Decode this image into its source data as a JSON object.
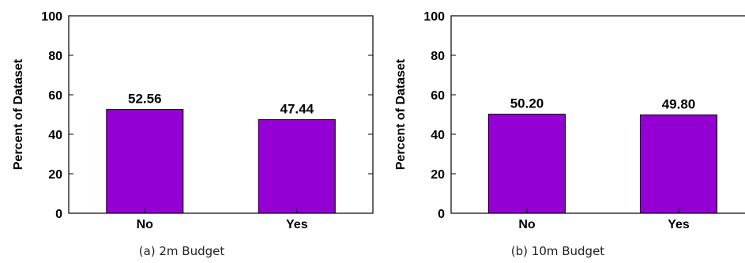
{
  "chart_data": [
    {
      "type": "bar",
      "categories": [
        "No",
        "Yes"
      ],
      "values": [
        52.56,
        47.44
      ],
      "value_labels": [
        "52.56",
        "47.44"
      ],
      "ylabel": "Percent of Dataset",
      "xlabel": "",
      "ylim": [
        0,
        100
      ],
      "yticks": [
        "0",
        "20",
        "40",
        "60",
        "80",
        "100"
      ],
      "caption": "(a)  2m Budget",
      "bar_color": "#9400d3",
      "grid": false
    },
    {
      "type": "bar",
      "categories": [
        "No",
        "Yes"
      ],
      "values": [
        50.2,
        49.8
      ],
      "value_labels": [
        "50.20",
        "49.80"
      ],
      "ylabel": "Percent of Dataset",
      "xlabel": "",
      "ylim": [
        0,
        100
      ],
      "yticks": [
        "0",
        "20",
        "40",
        "60",
        "80",
        "100"
      ],
      "caption": "(b)  10m Budget",
      "bar_color": "#9400d3",
      "grid": false
    }
  ]
}
